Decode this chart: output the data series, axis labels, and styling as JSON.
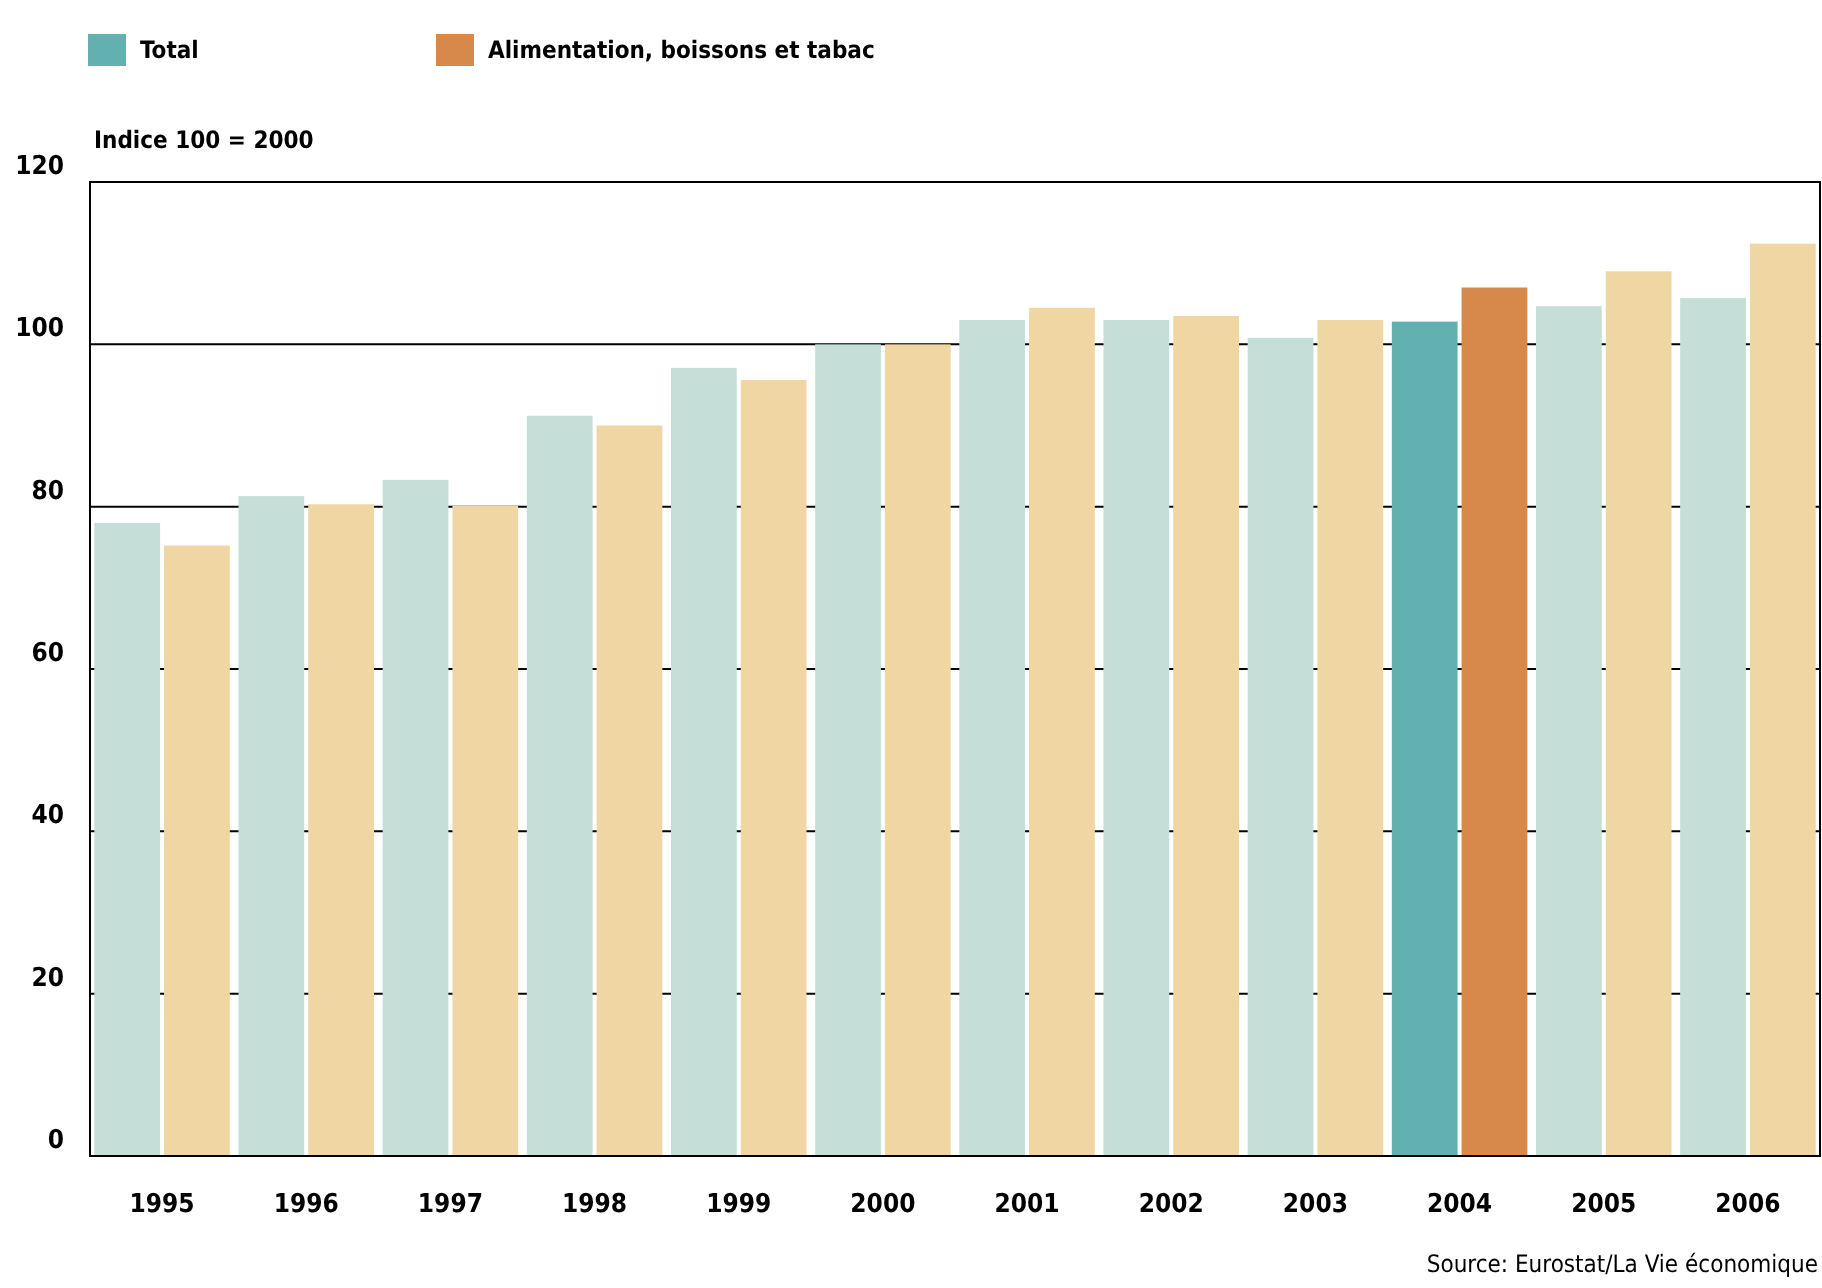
{
  "chart_data": {
    "type": "bar",
    "ylabel": "Indice 100 = 2000",
    "categories": [
      "1995",
      "1996",
      "1997",
      "1998",
      "1999",
      "2000",
      "2001",
      "2002",
      "2003",
      "2004",
      "2005",
      "2006"
    ],
    "series": [
      {
        "name": "Total",
        "color": "#62b0b0",
        "colors": [
          "#c5dfd8",
          "#c5dfd8",
          "#c5dfd8",
          "#c5dfd8",
          "#c5dfd8",
          "#c5dfd8",
          "#c5dfd8",
          "#c5dfd8",
          "#c5dfd8",
          "#62b0b0",
          "#c5dfd8",
          "#c5dfd8"
        ],
        "values": [
          78,
          81.3,
          83.3,
          91.2,
          97.1,
          100,
          103,
          103,
          100.8,
          102.8,
          104.7,
          105.7
        ]
      },
      {
        "name": "Alimentation, boissons et tabac",
        "color": "#d6894a",
        "colors": [
          "#f0d6a3",
          "#f0d6a3",
          "#f0d6a3",
          "#f0d6a3",
          "#f0d6a3",
          "#f0d6a3",
          "#f0d6a3",
          "#f0d6a3",
          "#f0d6a3",
          "#d6894a",
          "#f0d6a3",
          "#f0d6a3"
        ],
        "values": [
          75.2,
          80.3,
          80.1,
          90,
          95.6,
          100,
          104.5,
          103.5,
          103,
          107,
          109,
          112.4
        ]
      }
    ],
    "ylim": [
      0,
      120
    ],
    "yticks": [
      0,
      20,
      40,
      60,
      80,
      100,
      120
    ],
    "grid": "y",
    "legend": "top left",
    "annotations": [
      "Source: Eurostat/La Vie économique"
    ]
  }
}
